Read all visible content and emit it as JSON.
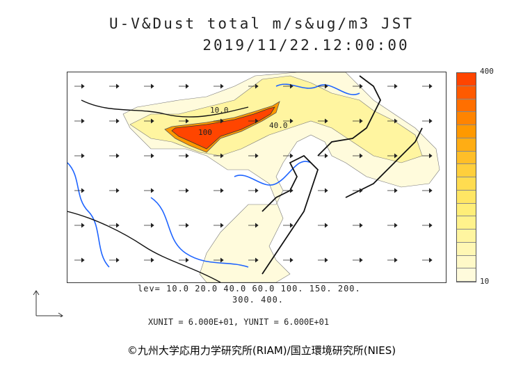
{
  "header": {
    "title_line1": "U-V&Dust total m/s&ug/m3 JST",
    "title_line2": "2019/11/22.12:00:00"
  },
  "colorbar": {
    "max_label": "400",
    "min_label": "10",
    "colors": [
      "#ff4500",
      "#ff5a00",
      "#ff6f00",
      "#ff8400",
      "#ff9900",
      "#ffad14",
      "#ffbe28",
      "#ffcf3c",
      "#ffdc50",
      "#ffe664",
      "#ffee78",
      "#fff28c",
      "#fff5a0",
      "#fff7b4",
      "#fff9c8",
      "#fffbdc"
    ]
  },
  "legend": {
    "levels_line1": "lev= 10.0 20.0 40.0 60.0 100. 150. 200.",
    "levels_line2": "300. 400.",
    "units_line": "XUNIT = 6.000E+01, YUNIT = 6.000E+01"
  },
  "map": {
    "contour_labels": [
      "10.0",
      "40.0",
      "100"
    ]
  },
  "footer": {
    "credit": "©九州大学応用力学研究所(RIAM)/国立環境研究所(NIES)"
  }
}
